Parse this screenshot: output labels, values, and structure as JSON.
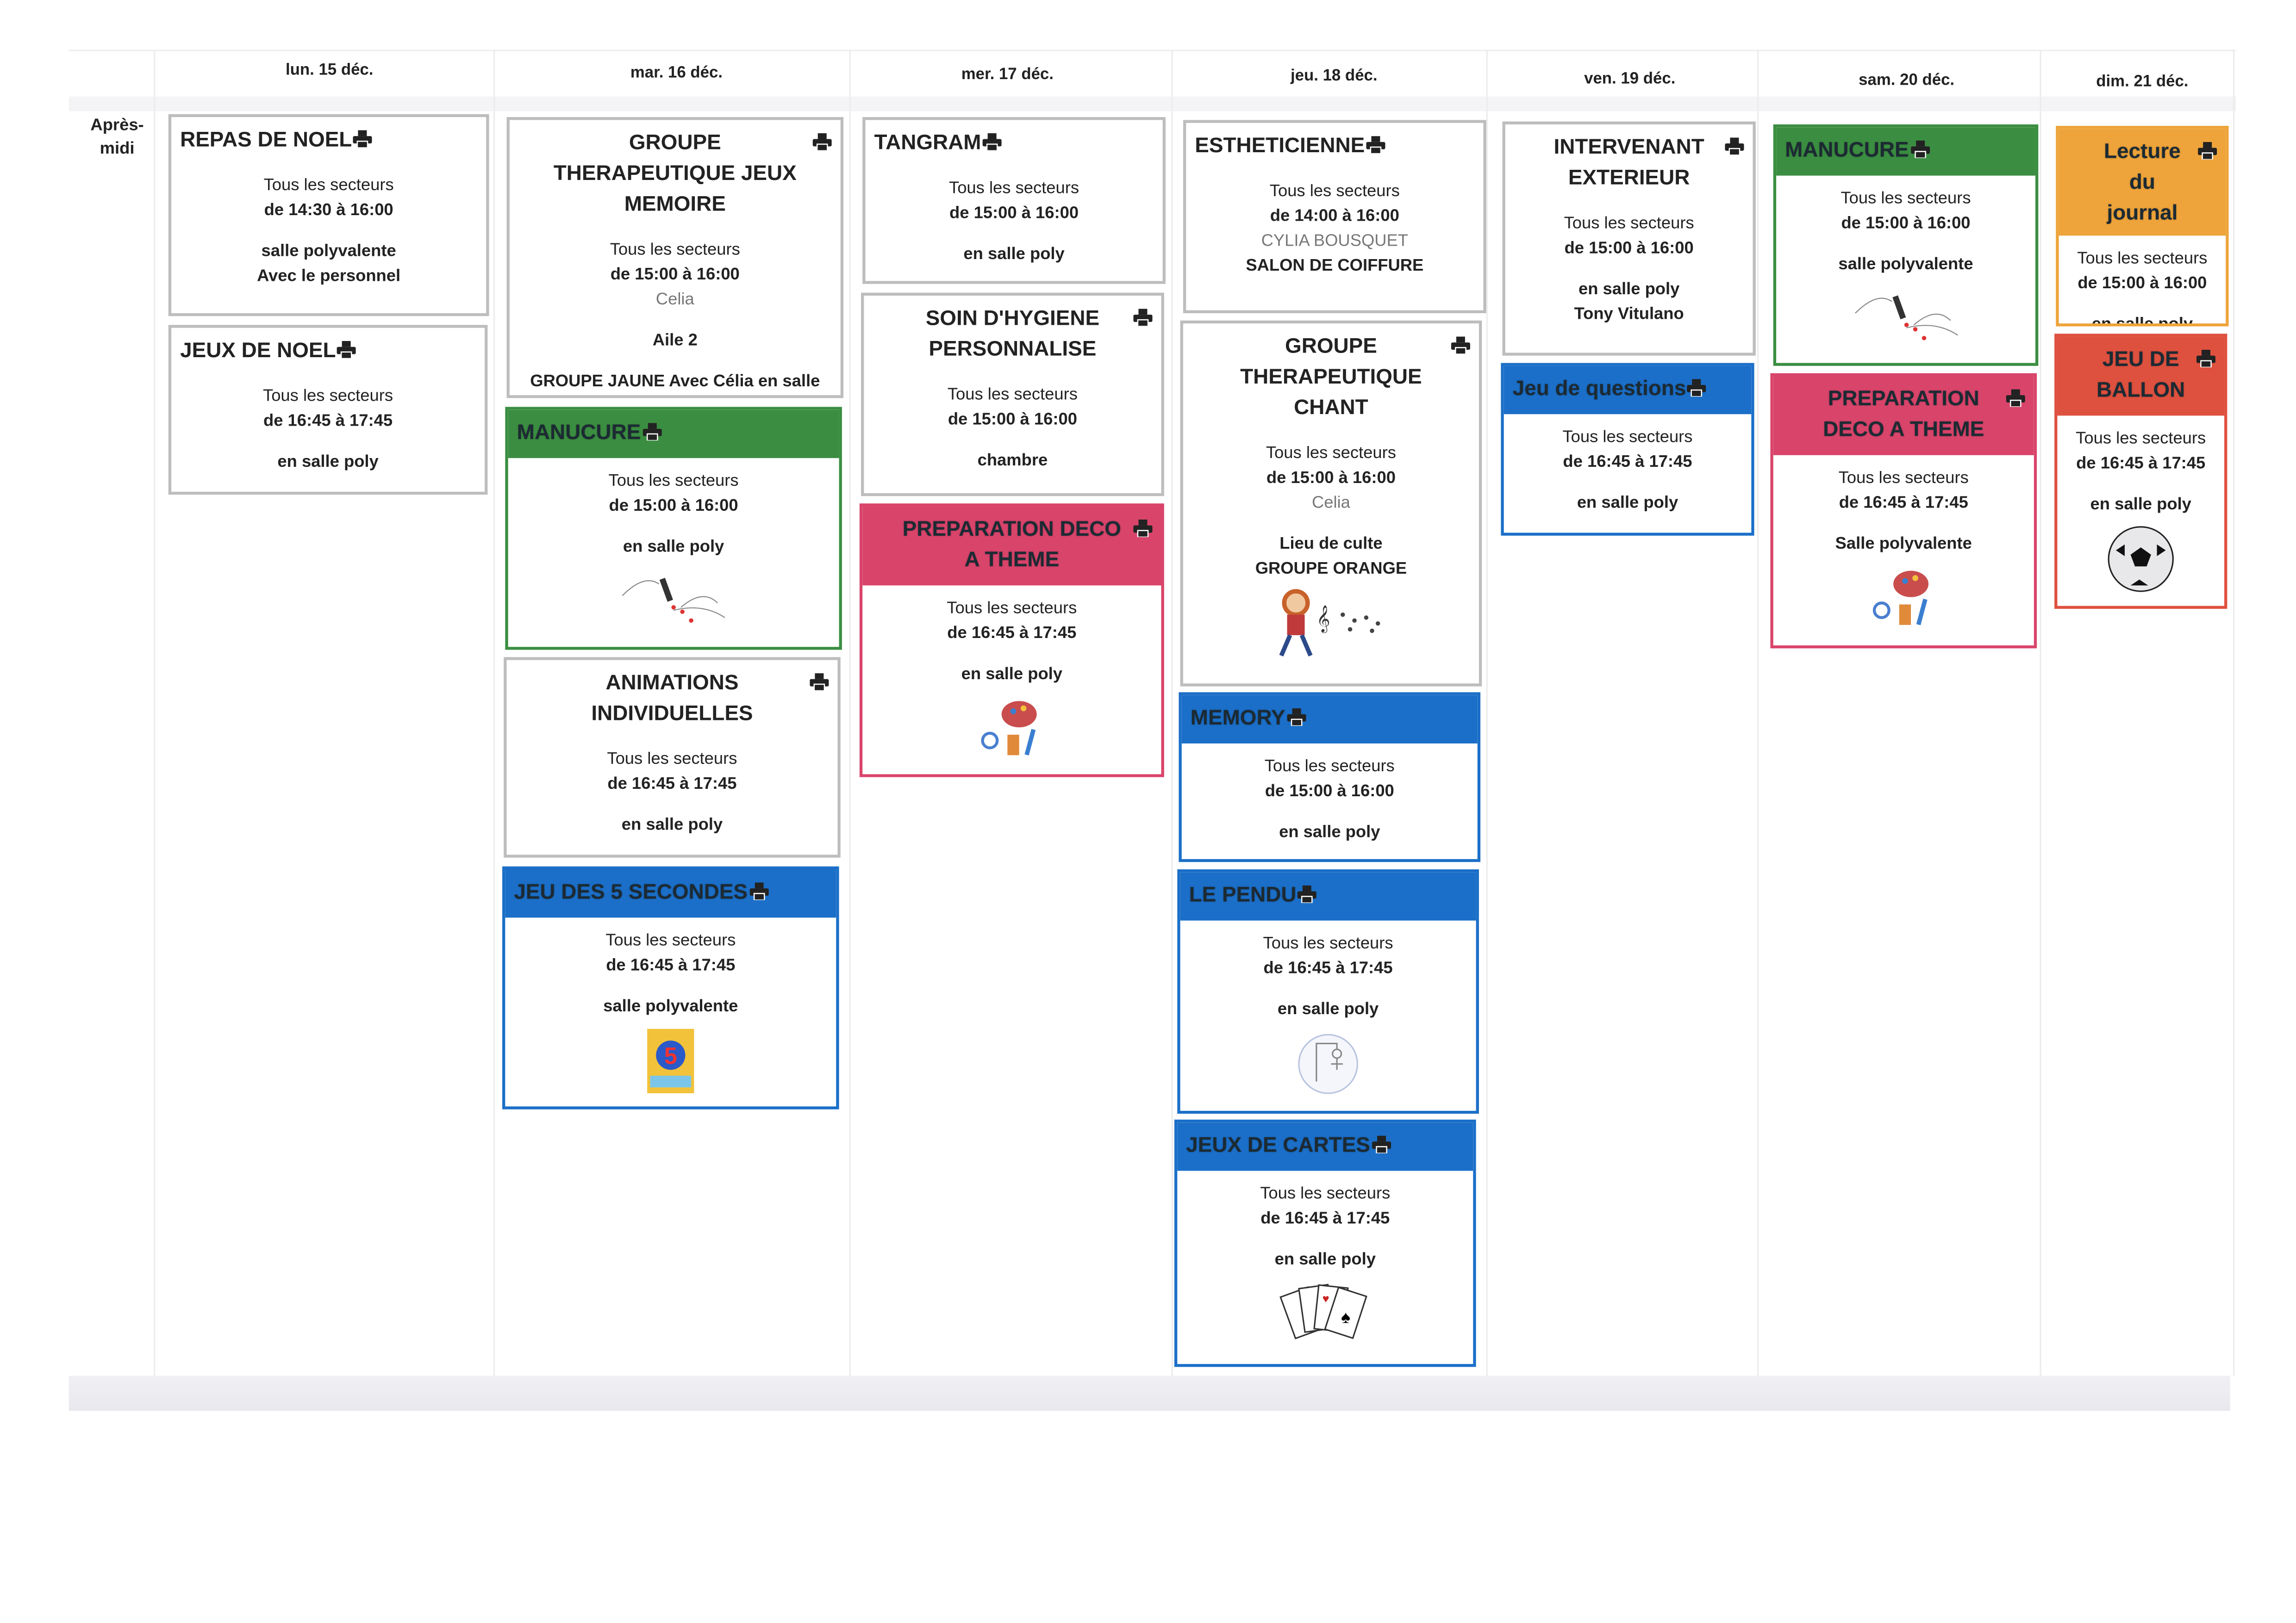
{
  "row_label": "Après-midi",
  "days": [
    "lun. 15 déc.",
    "mar. 16 déc.",
    "mer. 17 déc.",
    "jeu. 18 déc.",
    "ven. 19 déc.",
    "sam. 20 déc.",
    "dim. 21 déc."
  ],
  "colors": {
    "green": "#3b8e41",
    "blue": "#1b6fc8",
    "pink": "#d9446b",
    "orange": "#eea43a",
    "red": "#df513f",
    "plain_border": "#bdbdbd"
  },
  "print_icon": "printer-icon",
  "cards": [
    {
      "day": "lun. 15 déc.",
      "title": "REPAS DE NOEL",
      "color": "plain",
      "lines": [
        {
          "text": "Tous les secteurs",
          "style": "n"
        },
        {
          "text": "de 14:30 à 16:00",
          "style": "b"
        },
        {
          "text": "salle polyvalente",
          "style": "b gap"
        },
        {
          "text": "Avec le personnel",
          "style": "b"
        }
      ]
    },
    {
      "day": "lun. 15 déc.",
      "title": "JEUX DE NOEL",
      "color": "plain",
      "lines": [
        {
          "text": "Tous les secteurs",
          "style": "n"
        },
        {
          "text": "de 16:45 à 17:45",
          "style": "b"
        },
        {
          "text": "en salle poly",
          "style": "b gap"
        }
      ]
    },
    {
      "day": "mar. 16 déc.",
      "title": "GROUPE THERAPEUTIQUE JEUX MEMOIRE",
      "color": "plain",
      "lines": [
        {
          "text": "Tous les secteurs",
          "style": "n"
        },
        {
          "text": "de 15:00 à 16:00",
          "style": "b"
        },
        {
          "text": "Celia",
          "style": "g"
        },
        {
          "text": "Aile 2",
          "style": "b gap"
        },
        {
          "text": "GROUPE JAUNE Avec Célia en salle culte ou tisanerie",
          "style": "b gap"
        }
      ]
    },
    {
      "day": "mar. 16 déc.",
      "title": "MANUCURE",
      "color": "green",
      "image": "nail-polish-illustration",
      "lines": [
        {
          "text": "Tous les secteurs",
          "style": "n"
        },
        {
          "text": "de 15:00 à 16:00",
          "style": "b"
        },
        {
          "text": "en salle poly",
          "style": "b gap"
        }
      ]
    },
    {
      "day": "mar. 16 déc.",
      "title": "ANIMATIONS INDIVIDUELLES",
      "color": "plain",
      "lines": [
        {
          "text": "Tous les secteurs",
          "style": "n"
        },
        {
          "text": "de 16:45 à 17:45",
          "style": "b"
        },
        {
          "text": "en salle poly",
          "style": "b gap"
        }
      ]
    },
    {
      "day": "mar. 16 déc.",
      "title": "JEU DES 5 SECONDES",
      "color": "blue",
      "image": "game-box-illustration",
      "lines": [
        {
          "text": "Tous les secteurs",
          "style": "n"
        },
        {
          "text": "de 16:45 à 17:45",
          "style": "b"
        },
        {
          "text": "salle polyvalente",
          "style": "b gap"
        }
      ]
    },
    {
      "day": "mer. 17 déc.",
      "title": "TANGRAM",
      "color": "plain",
      "lines": [
        {
          "text": "Tous les secteurs",
          "style": "n"
        },
        {
          "text": "de 15:00 à 16:00",
          "style": "b"
        },
        {
          "text": "en salle poly",
          "style": "b gap"
        }
      ]
    },
    {
      "day": "mer. 17 déc.",
      "title": "SOIN D'HYGIENE PERSONNALISE",
      "color": "plain",
      "lines": [
        {
          "text": "Tous les secteurs",
          "style": "n"
        },
        {
          "text": "de 15:00 à 16:00",
          "style": "b"
        },
        {
          "text": "chambre",
          "style": "b gap"
        }
      ]
    },
    {
      "day": "mer. 17 déc.",
      "title": "PREPARATION DECO A THEME",
      "color": "pink",
      "image": "art-supplies-illustration",
      "lines": [
        {
          "text": "Tous les secteurs",
          "style": "n"
        },
        {
          "text": "de 16:45 à 17:45",
          "style": "b"
        },
        {
          "text": "en salle poly",
          "style": "b gap"
        }
      ]
    },
    {
      "day": "jeu. 18 déc.",
      "title": "ESTHETICIENNE",
      "color": "plain",
      "lines": [
        {
          "text": "Tous les secteurs",
          "style": "n"
        },
        {
          "text": "de 14:00 à 16:00",
          "style": "b"
        },
        {
          "text": "CYLIA BOUSQUET",
          "style": "g"
        },
        {
          "text": "SALON DE COIFFURE",
          "style": "b"
        }
      ]
    },
    {
      "day": "jeu. 18 déc.",
      "title": "GROUPE THERAPEUTIQUE CHANT",
      "color": "plain",
      "image": "singing-child-illustration",
      "lines": [
        {
          "text": "Tous les secteurs",
          "style": "n"
        },
        {
          "text": "de 15:00 à 16:00",
          "style": "b"
        },
        {
          "text": "Celia",
          "style": "g"
        },
        {
          "text": "Lieu de culte",
          "style": "b gap"
        },
        {
          "text": "GROUPE ORANGE",
          "style": "b"
        }
      ]
    },
    {
      "day": "jeu. 18 déc.",
      "title": "MEMORY",
      "color": "blue",
      "lines": [
        {
          "text": "Tous les secteurs",
          "style": "n"
        },
        {
          "text": "de 15:00 à 16:00",
          "style": "b"
        },
        {
          "text": "en salle poly",
          "style": "b gap"
        }
      ]
    },
    {
      "day": "jeu. 18 déc.",
      "title": "LE PENDU",
      "color": "blue",
      "image": "hangman-illustration",
      "lines": [
        {
          "text": "Tous les secteurs",
          "style": "n"
        },
        {
          "text": "de 16:45 à 17:45",
          "style": "b"
        },
        {
          "text": "en salle poly",
          "style": "b gap"
        }
      ]
    },
    {
      "day": "jeu. 18 déc.",
      "title": "JEUX DE CARTES",
      "color": "blue",
      "image": "playing-cards-illustration",
      "lines": [
        {
          "text": "Tous les secteurs",
          "style": "n"
        },
        {
          "text": "de 16:45 à 17:45",
          "style": "b"
        },
        {
          "text": "en salle poly",
          "style": "b gap"
        }
      ]
    },
    {
      "day": "ven. 19 déc.",
      "title": "INTERVENANT EXTERIEUR",
      "color": "plain",
      "lines": [
        {
          "text": "Tous les secteurs",
          "style": "n"
        },
        {
          "text": "de 15:00 à 16:00",
          "style": "b"
        },
        {
          "text": "en salle poly",
          "style": "b gap"
        },
        {
          "text": "Tony Vitulano",
          "style": "b"
        }
      ]
    },
    {
      "day": "ven. 19 déc.",
      "title": "Jeu de questions",
      "color": "blue",
      "lines": [
        {
          "text": "Tous les secteurs",
          "style": "n"
        },
        {
          "text": "de 16:45 à 17:45",
          "style": "b"
        },
        {
          "text": "en salle poly",
          "style": "b gap"
        }
      ]
    },
    {
      "day": "sam. 20 déc.",
      "title": "MANUCURE",
      "color": "green",
      "image": "nail-polish-illustration",
      "lines": [
        {
          "text": "Tous les secteurs",
          "style": "n"
        },
        {
          "text": "de 15:00 à 16:00",
          "style": "b"
        },
        {
          "text": "salle polyvalente",
          "style": "b gap"
        }
      ]
    },
    {
      "day": "sam. 20 déc.",
      "title": "PREPARATION DECO A THEME",
      "color": "pink",
      "image": "art-supplies-illustration",
      "lines": [
        {
          "text": "Tous les secteurs",
          "style": "n"
        },
        {
          "text": "de 16:45 à 17:45",
          "style": "b"
        },
        {
          "text": "Salle polyvalente",
          "style": "b gap"
        }
      ]
    },
    {
      "day": "dim. 21 déc.",
      "title": "Lecture du journal",
      "color": "orange",
      "lines": [
        {
          "text": "Tous les secteurs",
          "style": "n"
        },
        {
          "text": "de 15:00 à 16:00",
          "style": "b"
        },
        {
          "text": "en salle poly",
          "style": "b gap"
        }
      ]
    },
    {
      "day": "dim. 21 déc.",
      "title": "JEU DE BALLON",
      "color": "red",
      "image": "soccer-ball-illustration",
      "lines": [
        {
          "text": "Tous les secteurs",
          "style": "n"
        },
        {
          "text": "de 16:45 à 17:45",
          "style": "b"
        },
        {
          "text": "en salle poly",
          "style": "b gap"
        }
      ]
    }
  ]
}
